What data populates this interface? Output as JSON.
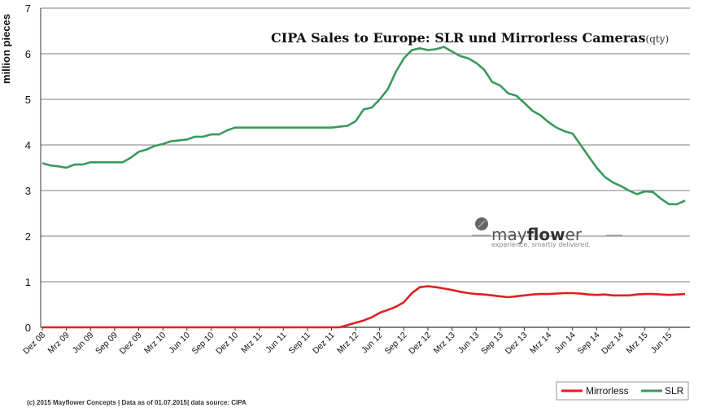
{
  "chart_data": {
    "type": "line",
    "title": "CIPA Sales to Europe: SLR und Mirrorless Cameras",
    "title_suffix": "(qty)",
    "xlabel": "",
    "ylabel": "million pieces",
    "ylim": [
      0,
      7
    ],
    "y_ticks": [
      "0",
      "1",
      "2",
      "3",
      "4",
      "5",
      "6",
      "7"
    ],
    "grid": "horizontal",
    "legend_position": "bottom-right",
    "x_tick_labels": [
      "Dez 08",
      "Mrz 09",
      "Jun 09",
      "Sep 09",
      "Dez 09",
      "Mrz 10",
      "Jun 10",
      "Sep 10",
      "Dez 10",
      "Mrz 11",
      "Jun 11",
      "Sep 11",
      "Dez 11",
      "Mrz 12",
      "Jun 12",
      "Sep 12",
      "Dez 12",
      "Mrz 13",
      "Jun 13",
      "Sep 13",
      "Dez 13",
      "Mrz 14",
      "Jun 14",
      "Sep 14",
      "Dez 14",
      "Mrz 15",
      "Jun 15"
    ],
    "series": [
      {
        "name": "SLR",
        "color": "#3a9a5c",
        "values": [
          3.6,
          3.55,
          3.53,
          3.5,
          3.57,
          3.57,
          3.62,
          3.62,
          3.62,
          3.62,
          3.62,
          3.72,
          3.85,
          3.9,
          3.98,
          4.02,
          4.08,
          4.1,
          4.12,
          4.18,
          4.18,
          4.23,
          4.23,
          4.32,
          4.38,
          4.38,
          4.38,
          4.38,
          4.38,
          4.38,
          4.38,
          4.38,
          4.38,
          4.38,
          4.38,
          4.38,
          4.38,
          4.4,
          4.42,
          4.52,
          4.78,
          4.82,
          5.0,
          5.22,
          5.6,
          5.9,
          6.08,
          6.12,
          6.08,
          6.1,
          6.15,
          6.05,
          5.95,
          5.9,
          5.8,
          5.65,
          5.38,
          5.3,
          5.13,
          5.08,
          4.92,
          4.75,
          4.65,
          4.5,
          4.38,
          4.3,
          4.25,
          4.0,
          3.75,
          3.5,
          3.3,
          3.18,
          3.1,
          3.0,
          2.92,
          2.98,
          2.97,
          2.82,
          2.7,
          2.7,
          2.78
        ]
      },
      {
        "name": "Mirrorless",
        "color": "#e02020",
        "values": [
          0,
          0,
          0,
          0,
          0,
          0,
          0,
          0,
          0,
          0,
          0,
          0,
          0,
          0,
          0,
          0,
          0,
          0,
          0,
          0,
          0,
          0,
          0,
          0,
          0,
          0,
          0,
          0,
          0,
          0,
          0,
          0,
          0,
          0,
          0,
          0,
          0,
          0.0,
          0.05,
          0.1,
          0.15,
          0.22,
          0.32,
          0.38,
          0.45,
          0.55,
          0.75,
          0.88,
          0.9,
          0.88,
          0.85,
          0.82,
          0.78,
          0.75,
          0.73,
          0.72,
          0.7,
          0.68,
          0.66,
          0.68,
          0.7,
          0.72,
          0.73,
          0.73,
          0.74,
          0.75,
          0.75,
          0.74,
          0.72,
          0.71,
          0.72,
          0.7,
          0.7,
          0.7,
          0.72,
          0.73,
          0.73,
          0.72,
          0.71,
          0.72,
          0.73
        ]
      }
    ]
  },
  "logo": {
    "text_regular_1": "may",
    "text_bold": "flow",
    "text_regular_2": "er",
    "tagline": "experience. smartly delivered."
  },
  "footer": "(c) 2015 Mayflower Concepts | Data as of 01.07.2015| data source: CIPA"
}
